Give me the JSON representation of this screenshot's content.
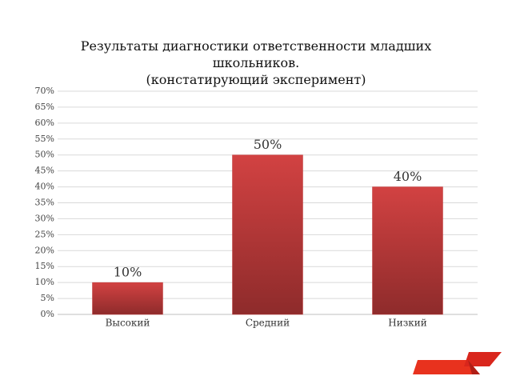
{
  "chart_data": {
    "type": "bar",
    "title": "Результаты диагностики ответственности младших школьников.",
    "subtitle": "(констатирующий эксперимент)",
    "categories": [
      "Высокий",
      "Средний",
      "Низкий"
    ],
    "values": [
      10,
      50,
      40
    ],
    "value_labels": [
      "10%",
      "50%",
      "40%"
    ],
    "color": "#c03a3a",
    "ylim": [
      0,
      70
    ],
    "yticks": [
      {
        "value": 0,
        "label": "0%"
      },
      {
        "value": 5,
        "label": "5%"
      },
      {
        "value": 10,
        "label": "10%"
      },
      {
        "value": 15,
        "label": "15%"
      },
      {
        "value": 20,
        "label": "20%"
      },
      {
        "value": 25,
        "label": "25%"
      },
      {
        "value": 30,
        "label": "30%"
      },
      {
        "value": 35,
        "label": "35%"
      },
      {
        "value": 40,
        "label": "40%"
      },
      {
        "value": 45,
        "label": "45%"
      },
      {
        "value": 50,
        "label": "50%"
      },
      {
        "value": 55,
        "label": "55%"
      },
      {
        "value": 60,
        "label": "60%"
      },
      {
        "value": 65,
        "label": "65%"
      },
      {
        "value": 70,
        "label": "70%"
      }
    ],
    "grid": true
  }
}
